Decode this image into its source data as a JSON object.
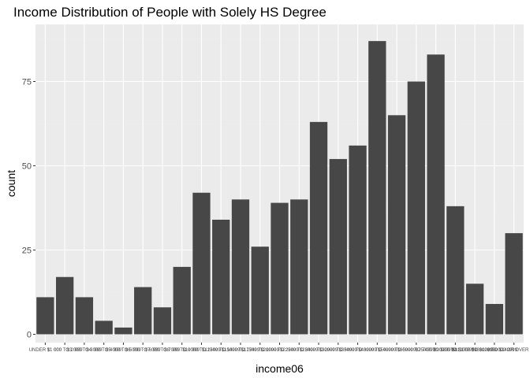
{
  "chart_data": {
    "type": "bar",
    "title": "Income Distribution of People with Solely HS Degree",
    "xlabel": "income06",
    "ylabel": "count",
    "ylim": [
      0,
      90
    ],
    "yticks": [
      0,
      25,
      50,
      75
    ],
    "grid": true,
    "bar_color": "#474747",
    "panel_color": "#ebebeb",
    "categories": [
      "UNDER $1 000",
      "$1 000 TO 2 999",
      "$3 000 TO 3 999",
      "$4 000 TO 4 999",
      "$5 000 TO 5 999",
      "$6 000 TO 6 999",
      "$7 000 TO 7 999",
      "$8 000 TO 9 999",
      "$10000 TO 12499",
      "$12500 TO 14999",
      "$15000 TO 17499",
      "$17500 TO 19999",
      "$20000 TO 22499",
      "$22500 TO 24999",
      "$25000 TO 29999",
      "$30000 TO 34999",
      "$35000 TO 39999",
      "$40000 TO 49999",
      "$50000 TO 59999",
      "$60000 TO 74999",
      "$75000 TO $89999",
      "$90000 TO $109999",
      "$110000 TO $129999",
      "$130000 TO $149999",
      "$150000 OR OVER"
    ],
    "values": [
      11,
      17,
      11,
      4,
      2,
      14,
      8,
      20,
      42,
      34,
      40,
      26,
      39,
      40,
      63,
      52,
      56,
      87,
      65,
      75,
      83,
      38,
      15,
      9,
      30
    ]
  }
}
